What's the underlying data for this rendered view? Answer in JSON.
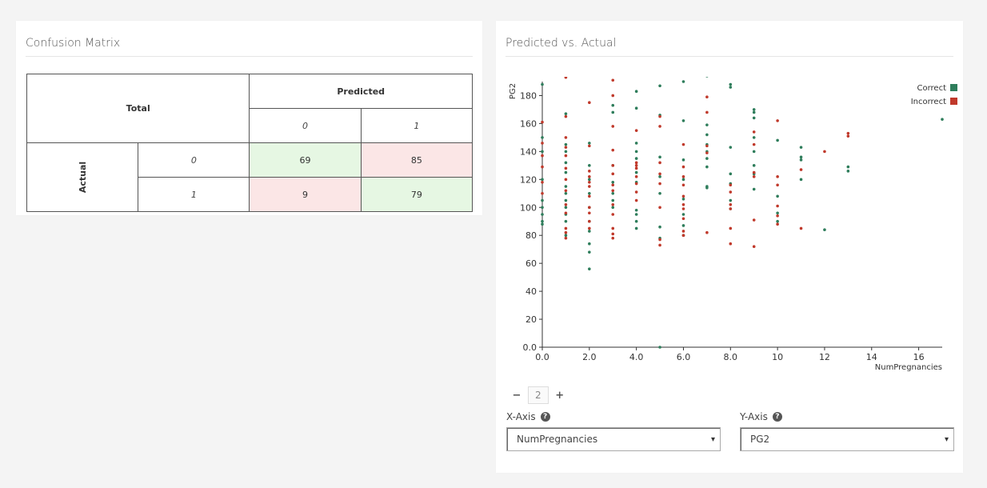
{
  "confusion": {
    "title": "Confusion Matrix",
    "total_label": "Total",
    "predicted_label": "Predicted",
    "actual_label": "Actual",
    "predicted_classes": [
      "0",
      "1"
    ],
    "actual_classes": [
      "0",
      "1"
    ],
    "cells": [
      [
        "69",
        "85"
      ],
      [
        "9",
        "79"
      ]
    ]
  },
  "scatter": {
    "title": "Predicted vs. Actual",
    "legend_correct": "Correct",
    "legend_incorrect": "Incorrect",
    "colors": {
      "correct": "#2e7d5b",
      "incorrect": "#c0392b"
    },
    "zoom": {
      "minus": "−",
      "value": "2",
      "plus": "+"
    },
    "x_axis_label": "X-Axis",
    "y_axis_label": "Y-Axis",
    "x_axis_value": "NumPregnancies",
    "y_axis_value": "PG2"
  },
  "chart_data": {
    "type": "scatter",
    "xlabel": "NumPregnancies",
    "ylabel": "PG2",
    "xlim": [
      0,
      17
    ],
    "ylim": [
      0,
      190
    ],
    "xticks": [
      "0.0",
      "2.0",
      "4.0",
      "6.0",
      "8.0",
      "10",
      "12",
      "14",
      "16"
    ],
    "yticks": [
      "0.0",
      "20",
      "40",
      "60",
      "80",
      "100",
      "120",
      "140",
      "160",
      "180"
    ],
    "series": [
      {
        "name": "Correct",
        "points": [
          [
            0,
            188
          ],
          [
            0,
            150
          ],
          [
            0,
            140
          ],
          [
            0,
            120
          ],
          [
            0,
            105
          ],
          [
            0,
            100
          ],
          [
            0,
            95
          ],
          [
            0,
            90
          ],
          [
            0,
            88
          ],
          [
            1,
            167
          ],
          [
            1,
            145
          ],
          [
            1,
            140
          ],
          [
            1,
            132
          ],
          [
            1,
            125
          ],
          [
            1,
            115
          ],
          [
            1,
            110
          ],
          [
            1,
            105
          ],
          [
            1,
            100
          ],
          [
            1,
            95
          ],
          [
            1,
            90
          ],
          [
            1,
            80
          ],
          [
            2,
            197
          ],
          [
            2,
            146
          ],
          [
            2,
            130
          ],
          [
            2,
            120
          ],
          [
            2,
            110
          ],
          [
            2,
            100
          ],
          [
            2,
            90
          ],
          [
            2,
            83
          ],
          [
            2,
            74
          ],
          [
            2,
            68
          ],
          [
            2,
            56
          ],
          [
            3,
            173
          ],
          [
            3,
            168
          ],
          [
            3,
            130
          ],
          [
            3,
            118
          ],
          [
            3,
            110
          ],
          [
            3,
            105
          ],
          [
            3,
            100
          ],
          [
            4,
            183
          ],
          [
            4,
            171
          ],
          [
            4,
            146
          ],
          [
            4,
            140
          ],
          [
            4,
            135
          ],
          [
            4,
            125
          ],
          [
            4,
            118
          ],
          [
            4,
            98
          ],
          [
            4,
            95
          ],
          [
            4,
            90
          ],
          [
            4,
            85
          ],
          [
            5,
            187
          ],
          [
            5,
            166
          ],
          [
            5,
            136
          ],
          [
            5,
            122
          ],
          [
            5,
            110
          ],
          [
            5,
            86
          ],
          [
            5,
            78
          ],
          [
            5,
            0
          ],
          [
            6,
            190
          ],
          [
            6,
            162
          ],
          [
            6,
            134
          ],
          [
            6,
            120
          ],
          [
            6,
            106
          ],
          [
            6,
            95
          ],
          [
            6,
            87
          ],
          [
            6,
            80
          ],
          [
            7,
            196
          ],
          [
            7,
            194
          ],
          [
            7,
            159
          ],
          [
            7,
            152
          ],
          [
            7,
            145
          ],
          [
            7,
            140
          ],
          [
            7,
            135
          ],
          [
            7,
            129
          ],
          [
            7,
            115
          ],
          [
            7,
            114
          ],
          [
            8,
            197
          ],
          [
            8,
            188
          ],
          [
            8,
            186
          ],
          [
            8,
            143
          ],
          [
            8,
            124
          ],
          [
            8,
            117
          ],
          [
            8,
            105
          ],
          [
            8,
            99
          ],
          [
            9,
            170
          ],
          [
            9,
            168
          ],
          [
            9,
            164
          ],
          [
            9,
            150
          ],
          [
            9,
            140
          ],
          [
            9,
            130
          ],
          [
            9,
            124
          ],
          [
            9,
            113
          ],
          [
            10,
            148
          ],
          [
            10,
            108
          ],
          [
            10,
            96
          ],
          [
            10,
            90
          ],
          [
            11,
            143
          ],
          [
            11,
            136
          ],
          [
            11,
            134
          ],
          [
            11,
            120
          ],
          [
            12,
            84
          ],
          [
            13,
            129
          ],
          [
            13,
            126
          ],
          [
            17,
            163
          ]
        ]
      },
      {
        "name": "Incorrect",
        "points": [
          [
            0,
            161
          ],
          [
            0,
            146
          ],
          [
            0,
            137
          ],
          [
            0,
            129
          ],
          [
            0,
            118
          ],
          [
            0,
            110
          ],
          [
            1,
            193
          ],
          [
            1,
            165
          ],
          [
            1,
            150
          ],
          [
            1,
            143
          ],
          [
            1,
            137
          ],
          [
            1,
            128
          ],
          [
            1,
            120
          ],
          [
            1,
            112
          ],
          [
            1,
            102
          ],
          [
            1,
            96
          ],
          [
            1,
            85
          ],
          [
            1,
            82
          ],
          [
            1,
            78
          ],
          [
            2,
            175
          ],
          [
            2,
            144
          ],
          [
            2,
            126
          ],
          [
            2,
            122
          ],
          [
            2,
            118
          ],
          [
            2,
            115
          ],
          [
            2,
            108
          ],
          [
            2,
            100
          ],
          [
            2,
            96
          ],
          [
            2,
            90
          ],
          [
            2,
            85
          ],
          [
            3,
            191
          ],
          [
            3,
            180
          ],
          [
            3,
            158
          ],
          [
            3,
            141
          ],
          [
            3,
            130
          ],
          [
            3,
            124
          ],
          [
            3,
            116
          ],
          [
            3,
            112
          ],
          [
            3,
            102
          ],
          [
            3,
            95
          ],
          [
            3,
            85
          ],
          [
            3,
            81
          ],
          [
            3,
            78
          ],
          [
            4,
            155
          ],
          [
            4,
            132
          ],
          [
            4,
            130
          ],
          [
            4,
            128
          ],
          [
            4,
            122
          ],
          [
            4,
            117
          ],
          [
            4,
            111
          ],
          [
            4,
            105
          ],
          [
            5,
            165
          ],
          [
            5,
            158
          ],
          [
            5,
            132
          ],
          [
            5,
            124
          ],
          [
            5,
            117
          ],
          [
            5,
            100
          ],
          [
            5,
            77
          ],
          [
            5,
            73
          ],
          [
            6,
            145
          ],
          [
            6,
            129
          ],
          [
            6,
            122
          ],
          [
            6,
            116
          ],
          [
            6,
            108
          ],
          [
            6,
            102
          ],
          [
            6,
            99
          ],
          [
            6,
            92
          ],
          [
            6,
            83
          ],
          [
            6,
            80
          ],
          [
            7,
            179
          ],
          [
            7,
            168
          ],
          [
            7,
            144
          ],
          [
            7,
            139
          ],
          [
            7,
            82
          ],
          [
            8,
            116
          ],
          [
            8,
            111
          ],
          [
            8,
            102
          ],
          [
            8,
            99
          ],
          [
            8,
            85
          ],
          [
            8,
            74
          ],
          [
            9,
            154
          ],
          [
            9,
            145
          ],
          [
            9,
            125
          ],
          [
            9,
            122
          ],
          [
            9,
            91
          ],
          [
            9,
            72
          ],
          [
            10,
            162
          ],
          [
            10,
            122
          ],
          [
            10,
            116
          ],
          [
            10,
            101
          ],
          [
            10,
            94
          ],
          [
            10,
            88
          ],
          [
            11,
            127
          ],
          [
            11,
            85
          ],
          [
            12,
            140
          ],
          [
            13,
            153
          ],
          [
            13,
            151
          ]
        ]
      }
    ]
  }
}
